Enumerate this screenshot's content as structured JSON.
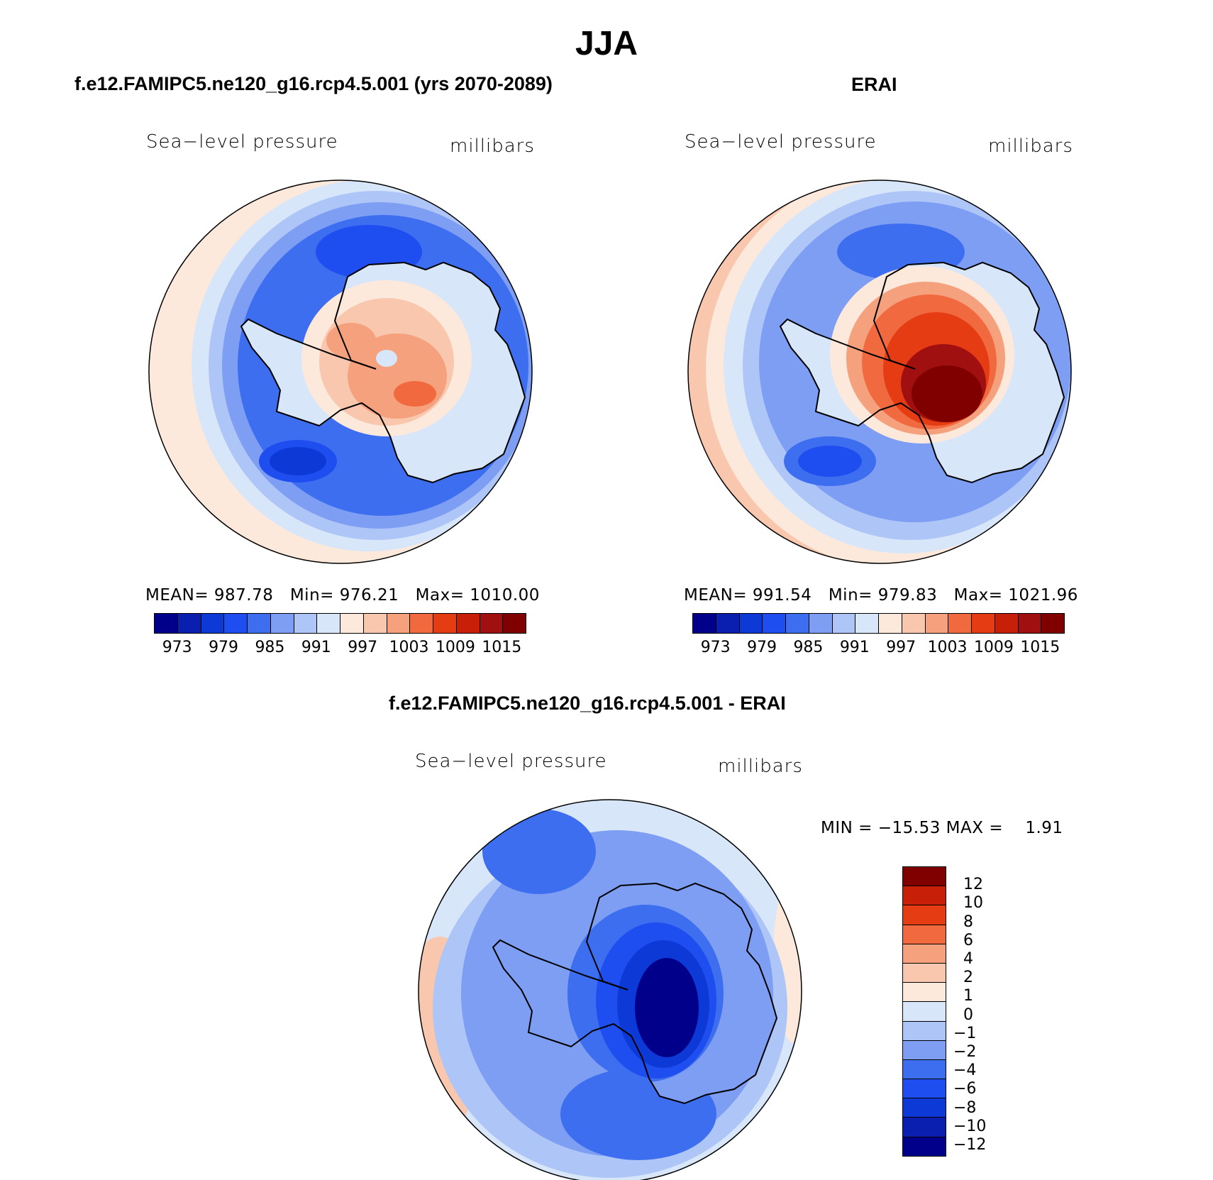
{
  "title": "JJA",
  "panels": [
    {
      "title": "f.e12.FAMIPC5.ne120_g16.rcp4.5.001 (yrs 2070-2089)",
      "variable": "Sea−level pressure",
      "units": "millibars",
      "stats": {
        "mean_label": "MEAN=",
        "mean": "987.78",
        "min_label": "Min=",
        "min": "976.21",
        "max_label": "Max=",
        "max": "1010.00"
      }
    },
    {
      "title": "ERAI",
      "variable": "Sea−level pressure",
      "units": "millibars",
      "stats": {
        "mean_label": "MEAN=",
        "mean": "991.54",
        "min_label": "Min=",
        "min": "979.83",
        "max_label": "Max=",
        "max": "1021.96"
      }
    },
    {
      "title": "f.e12.FAMIPC5.ne120_g16.rcp4.5.001 - ERAI",
      "variable": "Sea−level pressure",
      "units": "millibars",
      "stats": {
        "min_label": "MIN =",
        "min": "−15.53",
        "max_label": "MAX =",
        "max": "1.91"
      }
    }
  ],
  "colorbar_abs": {
    "colors": [
      "#00008b",
      "#0a1fb0",
      "#0d3ad6",
      "#1f4ef0",
      "#3e6ef0",
      "#7d9ef2",
      "#aec5f7",
      "#d8e6fa",
      "#fde9dc",
      "#f9c7ad",
      "#f6a17e",
      "#f16a3f",
      "#e63c14",
      "#c82008",
      "#a01010",
      "#800000"
    ],
    "tick_labels": [
      "973",
      "979",
      "985",
      "991",
      "997",
      "1003",
      "1009",
      "1015"
    ]
  },
  "colorbar_diff": {
    "colors": [
      "#800000",
      "#c82008",
      "#e63c14",
      "#f16a3f",
      "#f6a17e",
      "#f9c7ad",
      "#fde9dc",
      "#d8e6fa",
      "#aec5f7",
      "#7d9ef2",
      "#3e6ef0",
      "#1f4ef0",
      "#0d3ad6",
      "#0a1fb0",
      "#00008b"
    ],
    "tick_labels": [
      "12",
      "10",
      "8",
      "6",
      "4",
      "2",
      "1",
      "0",
      "−1",
      "−2",
      "−4",
      "−6",
      "−8",
      "−10",
      "−12"
    ]
  },
  "chart_data": [
    {
      "type": "heatmap",
      "title": "f.e12.FAMIPC5.ne120_g16.rcp4.5.001 (yrs 2070-2089)",
      "variable": "Sea-level pressure",
      "units": "millibars",
      "projection": "south polar stereographic",
      "levels": [
        973,
        976,
        979,
        982,
        985,
        988,
        991,
        994,
        997,
        1000,
        1003,
        1006,
        1009,
        1012,
        1015
      ],
      "mean": 987.78,
      "min": 976.21,
      "max": 1010.0
    },
    {
      "type": "heatmap",
      "title": "ERAI",
      "variable": "Sea-level pressure",
      "units": "millibars",
      "projection": "south polar stereographic",
      "levels": [
        973,
        976,
        979,
        982,
        985,
        988,
        991,
        994,
        997,
        1000,
        1003,
        1006,
        1009,
        1012,
        1015
      ],
      "mean": 991.54,
      "min": 979.83,
      "max": 1021.96
    },
    {
      "type": "heatmap",
      "title": "f.e12.FAMIPC5.ne120_g16.rcp4.5.001 - ERAI",
      "variable": "Sea-level pressure",
      "units": "millibars",
      "projection": "south polar stereographic",
      "levels": [
        -12,
        -10,
        -8,
        -6,
        -4,
        -2,
        -1,
        0,
        1,
        2,
        4,
        6,
        8,
        10,
        12
      ],
      "min": -15.53,
      "max": 1.91
    }
  ]
}
